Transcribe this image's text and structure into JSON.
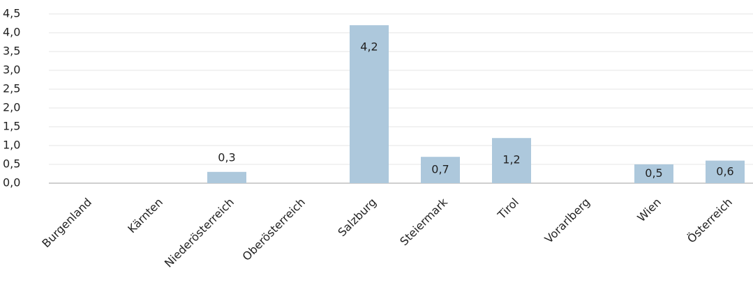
{
  "chart_data": {
    "type": "bar",
    "categories": [
      "Burgenland",
      "Kärnten",
      "Niederösterreich",
      "Oberösterreich",
      "Salzburg",
      "Steiermark",
      "Tirol",
      "Vorarlberg",
      "Wien",
      "Österreich"
    ],
    "values": [
      0,
      0,
      0.3,
      0,
      4.2,
      0.7,
      1.2,
      0,
      0.5,
      0.6
    ],
    "value_labels": [
      null,
      null,
      "0,3",
      null,
      "4,2",
      "0,7",
      "1,2",
      null,
      "0,5",
      "0,6"
    ],
    "color": "#adc8dc",
    "ylim": [
      0,
      4.5
    ],
    "yticks": [
      {
        "value": 0,
        "label": "0,0"
      },
      {
        "value": 0.5,
        "label": "0,5"
      },
      {
        "value": 1,
        "label": "1,0"
      },
      {
        "value": 1.5,
        "label": "1,5"
      },
      {
        "value": 2,
        "label": "2,0"
      },
      {
        "value": 2.5,
        "label": "2,5"
      },
      {
        "value": 3,
        "label": "3,0"
      },
      {
        "value": 3.5,
        "label": "3,5"
      },
      {
        "value": 4,
        "label": "4,0"
      },
      {
        "value": 4.5,
        "label": "4,5"
      }
    ],
    "grid": true
  }
}
